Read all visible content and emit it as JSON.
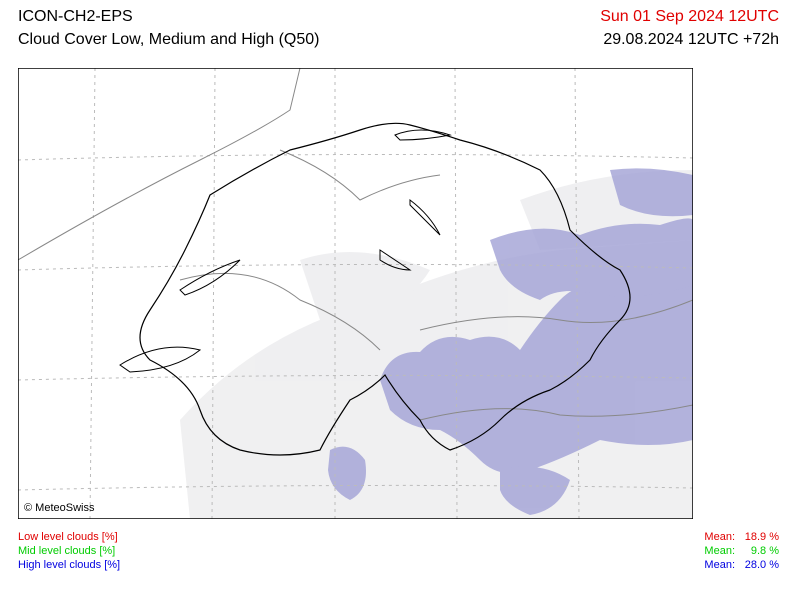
{
  "header": {
    "model": "ICON-CH2-EPS",
    "title": "Cloud Cover Low, Medium and High (Q50)",
    "valid_time": "Sun 01 Sep 2024 12UTC",
    "run": "29.08.2024 12UTC +72h"
  },
  "map": {
    "credit": "© MeteoSwiss"
  },
  "legend": [
    {
      "label": "Low level clouds [%]",
      "mean_label": "Mean:",
      "mean": "18.9 %"
    },
    {
      "label": "Mid level clouds [%]",
      "mean_label": "Mean:",
      "mean": "9.8 %"
    },
    {
      "label": "High level clouds [%]",
      "mean_label": "Mean:",
      "mean": "28.0 %"
    }
  ]
}
